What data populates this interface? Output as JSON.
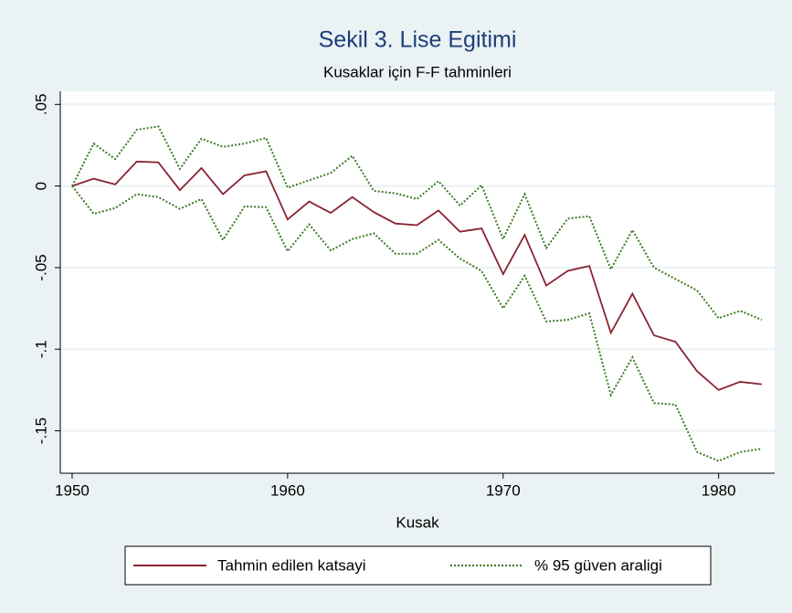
{
  "chart_data": {
    "type": "line",
    "title": "Sekil 3. Lise Egitimi",
    "subtitle": "Kusaklar için F-F tahminleri",
    "x_label": "Kusak",
    "x": [
      1950,
      1951,
      1952,
      1953,
      1954,
      1955,
      1956,
      1957,
      1958,
      1959,
      1960,
      1961,
      1962,
      1963,
      1964,
      1965,
      1966,
      1967,
      1968,
      1969,
      1970,
      1971,
      1972,
      1973,
      1974,
      1975,
      1976,
      1977,
      1978,
      1979,
      1980,
      1981,
      1982
    ],
    "series": [
      {
        "name": "Tahmin edilen katsayi",
        "color": "#8b2232",
        "style": "solid",
        "values": [
          0,
          0.0045,
          0.001,
          0.015,
          0.0145,
          -0.0025,
          0.011,
          -0.005,
          0.0065,
          0.009,
          -0.0205,
          -0.0095,
          -0.0165,
          -0.0068,
          -0.016,
          -0.023,
          -0.024,
          -0.015,
          -0.028,
          -0.026,
          -0.054,
          -0.03,
          -0.061,
          -0.052,
          -0.049,
          -0.09,
          -0.066,
          -0.0915,
          -0.0955,
          -0.1135,
          -0.125,
          -0.12,
          -0.1215
        ]
      },
      {
        "name": "% 95 güven araligi",
        "color": "#3a7a24",
        "style": "dotted",
        "upper": [
          0,
          0.026,
          0.0165,
          0.0345,
          0.0365,
          0.0105,
          0.029,
          0.024,
          0.026,
          0.0295,
          -0.001,
          0.0035,
          0.008,
          0.0185,
          -0.003,
          -0.0045,
          -0.008,
          0.003,
          -0.012,
          0.0005,
          -0.0325,
          -0.005,
          -0.038,
          -0.02,
          -0.0185,
          -0.051,
          -0.027,
          -0.05,
          -0.057,
          -0.064,
          -0.081,
          -0.0765,
          -0.082
        ],
        "lower": [
          0,
          -0.017,
          -0.0135,
          -0.005,
          -0.0068,
          -0.014,
          -0.008,
          -0.033,
          -0.0125,
          -0.013,
          -0.04,
          -0.0235,
          -0.0395,
          -0.0325,
          -0.029,
          -0.0415,
          -0.0415,
          -0.033,
          -0.0445,
          -0.052,
          -0.075,
          -0.055,
          -0.083,
          -0.082,
          -0.078,
          -0.128,
          -0.105,
          -0.133,
          -0.134,
          -0.163,
          -0.1685,
          -0.163,
          -0.161
        ]
      }
    ],
    "xlim": [
      1949.45,
      1982.6
    ],
    "ylim": [
      -0.176,
      0.058
    ],
    "xticks": [
      1950,
      1960,
      1970,
      1980
    ],
    "yticks": [
      {
        "value": 0.05,
        "label": ".05"
      },
      0,
      {
        "value": -0.05,
        "label": "-.05"
      },
      {
        "value": -0.1,
        "label": "-.1"
      },
      {
        "value": -0.15,
        "label": "-.15"
      }
    ],
    "grid": true
  }
}
